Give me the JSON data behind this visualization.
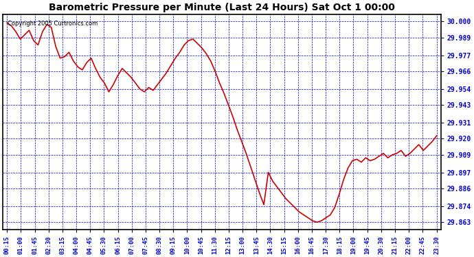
{
  "title": "Barometric Pressure per Minute (Last 24 Hours) Sat Oct 1 00:00",
  "copyright": "Copyright 2005 Curtronics.com",
  "line_color": "#cc0000",
  "bg_color": "#ffffff",
  "grid_color": "#0000cc",
  "axis_label_color": "#0000cc",
  "title_color": "#000000",
  "yticks": [
    29.863,
    29.874,
    29.886,
    29.897,
    29.909,
    29.92,
    29.931,
    29.943,
    29.954,
    29.966,
    29.977,
    29.989,
    30.0
  ],
  "ylim": [
    29.858,
    30.005
  ],
  "xtick_labels": [
    "00:15",
    "01:00",
    "01:45",
    "02:30",
    "03:15",
    "04:00",
    "04:45",
    "05:30",
    "06:15",
    "07:00",
    "07:45",
    "08:30",
    "09:15",
    "10:00",
    "10:45",
    "11:30",
    "12:15",
    "13:00",
    "13:45",
    "14:30",
    "15:15",
    "16:00",
    "16:45",
    "17:30",
    "18:15",
    "19:00",
    "19:45",
    "20:30",
    "21:15",
    "22:00",
    "22:45",
    "23:30"
  ],
  "pressure_data": [
    29.999,
    29.997,
    29.993,
    29.988,
    29.991,
    29.994,
    29.987,
    29.984,
    29.993,
    29.998,
    29.996,
    29.983,
    29.975,
    29.976,
    29.979,
    29.973,
    29.969,
    29.967,
    29.972,
    29.975,
    29.968,
    29.962,
    29.958,
    29.952,
    29.957,
    29.963,
    29.968,
    29.965,
    29.962,
    29.958,
    29.954,
    29.952,
    29.955,
    29.953,
    29.957,
    29.961,
    29.965,
    29.97,
    29.975,
    29.979,
    29.984,
    29.987,
    29.988,
    29.985,
    29.982,
    29.978,
    29.973,
    29.966,
    29.958,
    29.951,
    29.943,
    29.935,
    29.926,
    29.918,
    29.91,
    29.901,
    29.892,
    29.883,
    29.875,
    29.897,
    29.891,
    29.887,
    29.883,
    29.879,
    29.876,
    29.873,
    29.87,
    29.868,
    29.866,
    29.864,
    29.863,
    29.864,
    29.866,
    29.868,
    29.873,
    29.882,
    29.892,
    29.9,
    29.905,
    29.906,
    29.904,
    29.907,
    29.905,
    29.906,
    29.908,
    29.91,
    29.907,
    29.909,
    29.91,
    29.912,
    29.908,
    29.91,
    29.913,
    29.916,
    29.912,
    29.915,
    29.918,
    29.922
  ]
}
